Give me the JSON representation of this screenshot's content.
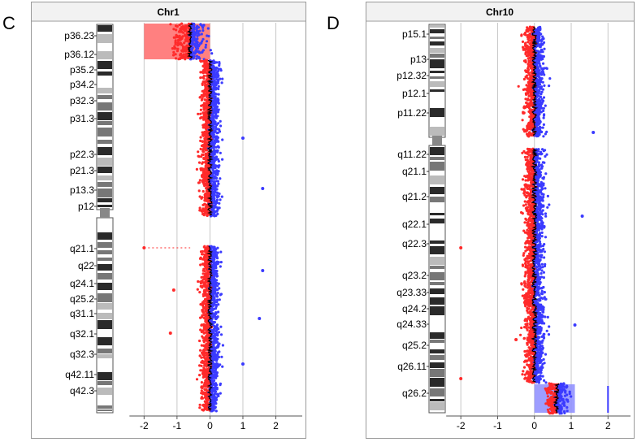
{
  "panel_letters": [
    "C",
    "D"
  ],
  "chart_data": [
    {
      "type": "scatter",
      "title": "Chr1",
      "panel_label": "C",
      "xlim": [
        -2.6,
        2.9
      ],
      "x_ticks": [
        "-2",
        "-1",
        "0",
        "1",
        "2"
      ],
      "x_tick_values": [
        -2,
        -1,
        0,
        1,
        2
      ],
      "grid": true,
      "loss_color": "#ff2a2a",
      "gain_color": "#3b3bff",
      "line_color": "#000000",
      "bands": [
        "p36.23",
        "p36.12",
        "p35.2",
        "p34.2",
        "p32.3",
        "p31.3",
        "p22.3",
        "p21.3",
        "p13.3",
        "p12",
        "q21.1",
        "q22",
        "q24.1",
        "q25.2",
        "q31.1",
        "q32.1",
        "q32.3",
        "q42.11",
        "q42.3"
      ],
      "segments": [
        {
          "region": "p-distal",
          "mean_log_ratio": -0.6,
          "spread": 0.5
        },
        {
          "region": "p-arm",
          "mean_log_ratio": 0.0,
          "spread": 0.25
        },
        {
          "region": "q-arm",
          "mean_log_ratio": 0.0,
          "spread": 0.25
        }
      ]
    },
    {
      "type": "scatter",
      "title": "Chr10",
      "panel_label": "D",
      "xlim": [
        -2.6,
        2.7
      ],
      "x_ticks": [
        "-2",
        "-1",
        "0",
        "1",
        "2"
      ],
      "x_tick_values": [
        -2,
        -1,
        0,
        1,
        2
      ],
      "grid": true,
      "loss_color": "#ff2a2a",
      "gain_color": "#3b3bff",
      "line_color": "#000000",
      "bands": [
        "p15.1",
        "p13",
        "p12.32",
        "p12.1",
        "p11.22",
        "q11.22",
        "q21.1",
        "q21.2",
        "q22.1",
        "q22.3",
        "q23.2",
        "q23.33",
        "q24.2",
        "q24.33",
        "q25.2",
        "q26.11",
        "q26.2"
      ],
      "segments": [
        {
          "region": "p-arm",
          "mean_log_ratio": 0.0,
          "spread": 0.25
        },
        {
          "region": "q-arm",
          "mean_log_ratio": 0.0,
          "spread": 0.25
        },
        {
          "region": "q-distal",
          "mean_log_ratio": 0.6,
          "spread": 0.3
        }
      ]
    }
  ]
}
